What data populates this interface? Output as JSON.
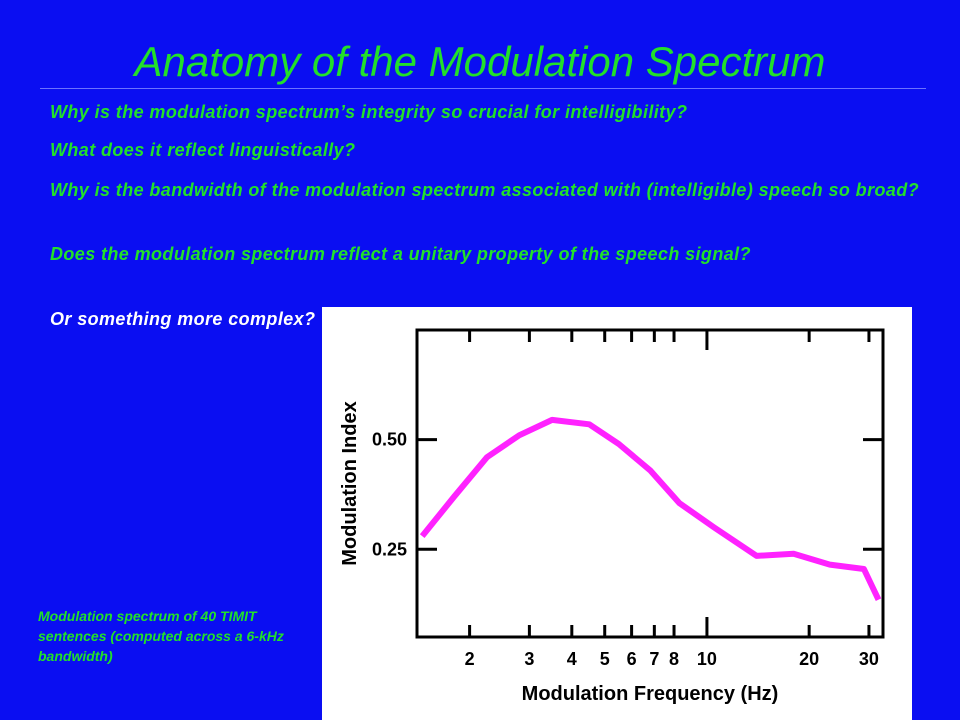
{
  "slide": {
    "title": "Anatomy of the Modulation Spectrum",
    "questions": [
      "Why is the modulation spectrum’s integrity so crucial for intelligibility?",
      "What does it reflect linguistically?",
      "Why is the bandwidth of the modulation spectrum associated with (intelligible) speech so broad?",
      "Does the modulation spectrum reflect a unitary property of the speech signal?",
      "Or something more complex?"
    ],
    "caption": "Modulation spectrum of 40 TIMIT sentences (computed across a 6-kHz bandwidth)"
  },
  "colors": {
    "background": "#0a0ef2",
    "text_green": "#22e02a",
    "text_white": "#ffffff",
    "plot_bg": "#ffffff",
    "line": "#ff22ff"
  },
  "chart_data": {
    "type": "line",
    "xlabel": "Modulation Frequency (Hz)",
    "ylabel": "Modulation Index",
    "x_scale": "log",
    "x_ticks": [
      2,
      3,
      4,
      5,
      6,
      7,
      8,
      10,
      20,
      30
    ],
    "y_ticks": [
      0.25,
      0.5
    ],
    "y_tick_labels": [
      "0.25",
      "0.50"
    ],
    "xlim": [
      1.4,
      33
    ],
    "ylim": [
      0.05,
      0.75
    ],
    "grid": false,
    "series": [
      {
        "x": [
          1.45,
          1.8,
          2.25,
          2.8,
          3.5,
          4.5,
          5.5,
          6.8,
          8.3,
          10.5,
          14,
          18,
          23,
          29,
          32
        ],
        "y": [
          0.28,
          0.37,
          0.46,
          0.51,
          0.545,
          0.535,
          0.49,
          0.43,
          0.355,
          0.3,
          0.235,
          0.24,
          0.215,
          0.205,
          0.135
        ]
      }
    ]
  }
}
